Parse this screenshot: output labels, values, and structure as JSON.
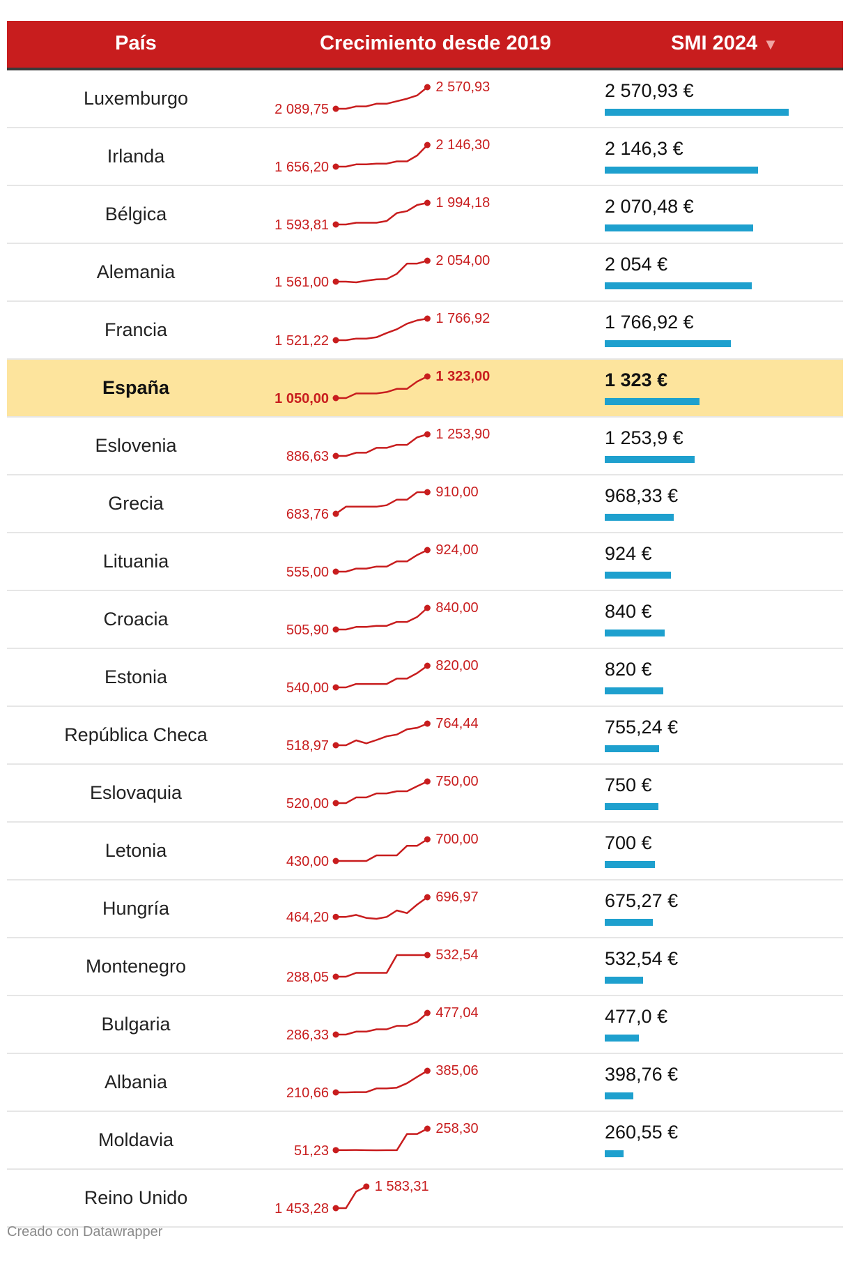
{
  "header": {
    "country": "País",
    "growth": "Crecimiento desde 2019",
    "smi": "SMI 2024",
    "sort_icon": "▼"
  },
  "footer": "Creado con Datawrapper",
  "colors": {
    "header_bg": "#c81d1e",
    "line": "#c81d1e",
    "bar": "#1ea0ce",
    "highlight": "#fde49d"
  },
  "chart_data": {
    "type": "table",
    "bar_max": 2570.93,
    "rows": [
      {
        "country": "Luxemburgo",
        "start_label": "2 089,75",
        "end_label": "2 570,93",
        "smi_label": "2 570,93 €",
        "smi": 2570.93,
        "series": [
          2089.75,
          2089.75,
          2141.99,
          2141.99,
          2201.93,
          2201.93,
          2256.95,
          2313.38,
          2387.4,
          2570.93
        ]
      },
      {
        "country": "Irlanda",
        "start_label": "1 656,20",
        "end_label": "2 146,30",
        "smi_label": "2 146,3 €",
        "smi": 2146.3,
        "series": [
          1656.2,
          1656.2,
          1706.9,
          1706.9,
          1723.8,
          1723.8,
          1774.5,
          1774.5,
          1909.7,
          2146.3
        ]
      },
      {
        "country": "Bélgica",
        "start_label": "1 593,81",
        "end_label": "1 994,18",
        "smi_label": "2 070,48 €",
        "smi": 2070.48,
        "series": [
          1593.81,
          1593.81,
          1625.72,
          1625.72,
          1625.72,
          1658.23,
          1806.16,
          1842.28,
          1954.99,
          1994.18
        ]
      },
      {
        "country": "Alemania",
        "start_label": "1 561,00",
        "end_label": "2 054,00",
        "smi_label": "2 054 €",
        "smi": 2054.0,
        "series": [
          1561.0,
          1561.0,
          1544.0,
          1584.0,
          1614.0,
          1621.0,
          1744.0,
          1987.0,
          1987.0,
          2054.0
        ]
      },
      {
        "country": "Francia",
        "start_label": "1 521,22",
        "end_label": "1 766,92",
        "smi_label": "1 766,92 €",
        "smi": 1766.92,
        "series": [
          1521.22,
          1521.22,
          1539.42,
          1539.42,
          1554.58,
          1603.12,
          1645.58,
          1709.28,
          1747.2,
          1766.92
        ]
      },
      {
        "country": "España",
        "highlight": true,
        "start_label": "1 050,00",
        "end_label": "1 323,00",
        "smi_label": "1 323 €",
        "smi": 1323.0,
        "series": [
          1050.0,
          1050.0,
          1108.33,
          1108.33,
          1108.33,
          1125.83,
          1166.67,
          1166.67,
          1260.0,
          1323.0
        ]
      },
      {
        "country": "Eslovenia",
        "start_label": "886,63",
        "end_label": "1 253,90",
        "smi_label": "1 253,9 €",
        "smi": 1253.9,
        "series": [
          886.63,
          886.63,
          940.58,
          940.58,
          1024.24,
          1024.24,
          1074.43,
          1074.43,
          1203.36,
          1253.9
        ]
      },
      {
        "country": "Grecia",
        "start_label": "683,76",
        "end_label": "910,00",
        "smi_label": "968,33 €",
        "smi": 968.33,
        "series": [
          683.76,
          758.33,
          758.33,
          758.33,
          758.33,
          773.5,
          831.83,
          831.83,
          910.0,
          910.0
        ]
      },
      {
        "country": "Lituania",
        "start_label": "555,00",
        "end_label": "924,00",
        "smi_label": "924 €",
        "smi": 924.0,
        "series": [
          555.0,
          555.0,
          607.0,
          607.0,
          642.0,
          642.0,
          730.0,
          730.0,
          840.0,
          924.0
        ]
      },
      {
        "country": "Croacia",
        "start_label": "505,90",
        "end_label": "840,00",
        "smi_label": "840 €",
        "smi": 840.0,
        "series": [
          505.9,
          505.9,
          546.0,
          546.0,
          563.0,
          563.0,
          623.0,
          623.0,
          700.0,
          840.0
        ]
      },
      {
        "country": "Estonia",
        "start_label": "540,00",
        "end_label": "820,00",
        "smi_label": "820 €",
        "smi": 820.0,
        "series": [
          540.0,
          540.0,
          584.0,
          584.0,
          584.0,
          584.0,
          654.0,
          654.0,
          725.0,
          820.0
        ]
      },
      {
        "country": "República Checa",
        "start_label": "518,97",
        "end_label": "764,44",
        "smi_label": "755,24 €",
        "smi": 755.24,
        "series": [
          518.97,
          518.97,
          574.62,
          540.0,
          578.0,
          620.0,
          640.0,
          700.0,
          717.0,
          764.44
        ]
      },
      {
        "country": "Eslovaquia",
        "start_label": "520,00",
        "end_label": "750,00",
        "smi_label": "750 €",
        "smi": 750.0,
        "series": [
          520.0,
          520.0,
          580.0,
          580.0,
          623.0,
          623.0,
          646.0,
          646.0,
          700.0,
          750.0
        ]
      },
      {
        "country": "Letonia",
        "start_label": "430,00",
        "end_label": "700,00",
        "smi_label": "700 €",
        "smi": 700.0,
        "series": [
          430.0,
          430.0,
          430.0,
          430.0,
          500.0,
          500.0,
          500.0,
          620.0,
          620.0,
          700.0
        ]
      },
      {
        "country": "Hungría",
        "start_label": "464,20",
        "end_label": "696,97",
        "smi_label": "675,27 €",
        "smi": 675.27,
        "series": [
          464.2,
          464.2,
          487.0,
          452.0,
          441.0,
          463.0,
          540.0,
          509.0,
          610.0,
          696.97
        ]
      },
      {
        "country": "Montenegro",
        "start_label": "288,05",
        "end_label": "532,54",
        "smi_label": "532,54 €",
        "smi": 532.54,
        "series": [
          288.05,
          288.05,
          331.33,
          331.33,
          331.33,
          331.33,
          532.54,
          532.54,
          532.54,
          532.54
        ]
      },
      {
        "country": "Bulgaria",
        "start_label": "286,33",
        "end_label": "477,04",
        "smi_label": "477,0 €",
        "smi": 477.0,
        "series": [
          286.33,
          286.33,
          311.89,
          311.89,
          332.34,
          332.34,
          363.02,
          363.02,
          398.81,
          477.04
        ]
      },
      {
        "country": "Albania",
        "start_label": "210,66",
        "end_label": "385,06",
        "smi_label": "398,76 €",
        "smi": 398.76,
        "series": [
          210.66,
          210.66,
          213.0,
          213.0,
          243.0,
          243.0,
          249.0,
          285.0,
          336.0,
          385.06
        ]
      },
      {
        "country": "Moldavia",
        "start_label": "51,23",
        "end_label": "258,30",
        "smi_label": "260,55 €",
        "smi": 260.55,
        "series": [
          51.23,
          51.23,
          53.0,
          51.0,
          50.0,
          51.0,
          51.0,
          207.0,
          207.0,
          258.3
        ]
      },
      {
        "country": "Reino Unido",
        "start_label": "1 453,28",
        "end_label": "1 583,31",
        "smi_label": "",
        "smi": null,
        "series": [
          1453.28,
          1453.28,
          1553.0,
          1583.31
        ]
      }
    ]
  }
}
